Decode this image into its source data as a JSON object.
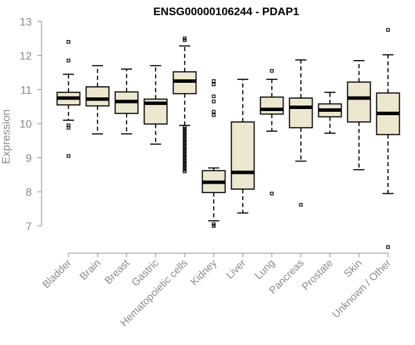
{
  "chart_data": {
    "type": "boxplot",
    "title": "ENSG00000106244 - PDAP1",
    "xlabel": "",
    "ylabel": "Expression",
    "ylim": [
      6.3,
      13.0
    ],
    "yticks": [
      7,
      8,
      9,
      10,
      11,
      12,
      13
    ],
    "colors": {
      "box_fill": "#ede7cf",
      "stroke": "#000000",
      "axis": "#8a8a8a"
    },
    "categories": [
      "Bladder",
      "Brain",
      "Breast",
      "Gastric",
      "Hematopoietic cells",
      "Kidney",
      "Liver",
      "Lung",
      "Pancreas",
      "Prostate",
      "Skin",
      "Unknown / Other"
    ],
    "boxes": [
      {
        "name": "Bladder",
        "whisker_low": 10.1,
        "q1": 10.55,
        "median": 10.75,
        "q3": 10.92,
        "whisker_high": 11.45,
        "outliers": [
          12.4,
          11.85,
          9.95,
          9.88,
          9.05
        ]
      },
      {
        "name": "Brain",
        "whisker_low": 9.7,
        "q1": 10.52,
        "median": 10.72,
        "q3": 11.08,
        "whisker_high": 11.7,
        "outliers": []
      },
      {
        "name": "Breast",
        "whisker_low": 9.7,
        "q1": 10.3,
        "median": 10.65,
        "q3": 10.93,
        "whisker_high": 11.6,
        "outliers": []
      },
      {
        "name": "Gastric",
        "whisker_low": 9.4,
        "q1": 9.99,
        "median": 10.6,
        "q3": 10.72,
        "whisker_high": 11.7,
        "outliers": []
      },
      {
        "name": "Hematopoietic cells",
        "whisker_low": 9.95,
        "q1": 10.88,
        "median": 11.25,
        "q3": 11.52,
        "whisker_high": 12.28,
        "outliers": [
          12.5,
          12.45,
          9.9,
          9.85,
          9.8,
          9.75,
          9.7,
          9.65,
          9.6,
          9.55,
          9.5,
          9.45,
          9.4,
          9.35,
          9.3,
          9.25,
          9.2,
          9.15,
          9.1,
          9.05,
          9.0,
          8.95,
          8.9,
          8.85,
          8.8,
          8.75,
          8.7,
          8.65,
          8.6
        ]
      },
      {
        "name": "Kidney",
        "whisker_low": 7.15,
        "q1": 7.98,
        "median": 8.28,
        "q3": 8.62,
        "whisker_high": 8.7,
        "outliers": [
          11.25,
          11.15,
          10.8,
          10.65,
          10.35,
          10.25,
          7.05,
          7.0
        ]
      },
      {
        "name": "Liver",
        "whisker_low": 7.38,
        "q1": 8.08,
        "median": 8.57,
        "q3": 10.05,
        "whisker_high": 11.3,
        "outliers": []
      },
      {
        "name": "Lung",
        "whisker_low": 9.78,
        "q1": 10.28,
        "median": 10.42,
        "q3": 10.78,
        "whisker_high": 11.3,
        "outliers": [
          11.55,
          7.95
        ]
      },
      {
        "name": "Pancreas",
        "whisker_low": 8.9,
        "q1": 9.88,
        "median": 10.48,
        "q3": 10.75,
        "whisker_high": 11.87,
        "outliers": [
          7.62
        ]
      },
      {
        "name": "Prostate",
        "whisker_low": 9.72,
        "q1": 10.2,
        "median": 10.4,
        "q3": 10.58,
        "whisker_high": 10.92,
        "outliers": []
      },
      {
        "name": "Skin",
        "whisker_low": 8.65,
        "q1": 10.05,
        "median": 10.75,
        "q3": 11.22,
        "whisker_high": 11.85,
        "outliers": []
      },
      {
        "name": "Unknown / Other",
        "whisker_low": 7.95,
        "q1": 9.68,
        "median": 10.3,
        "q3": 10.9,
        "whisker_high": 12.02,
        "outliers": [
          12.75,
          6.38
        ]
      }
    ]
  }
}
